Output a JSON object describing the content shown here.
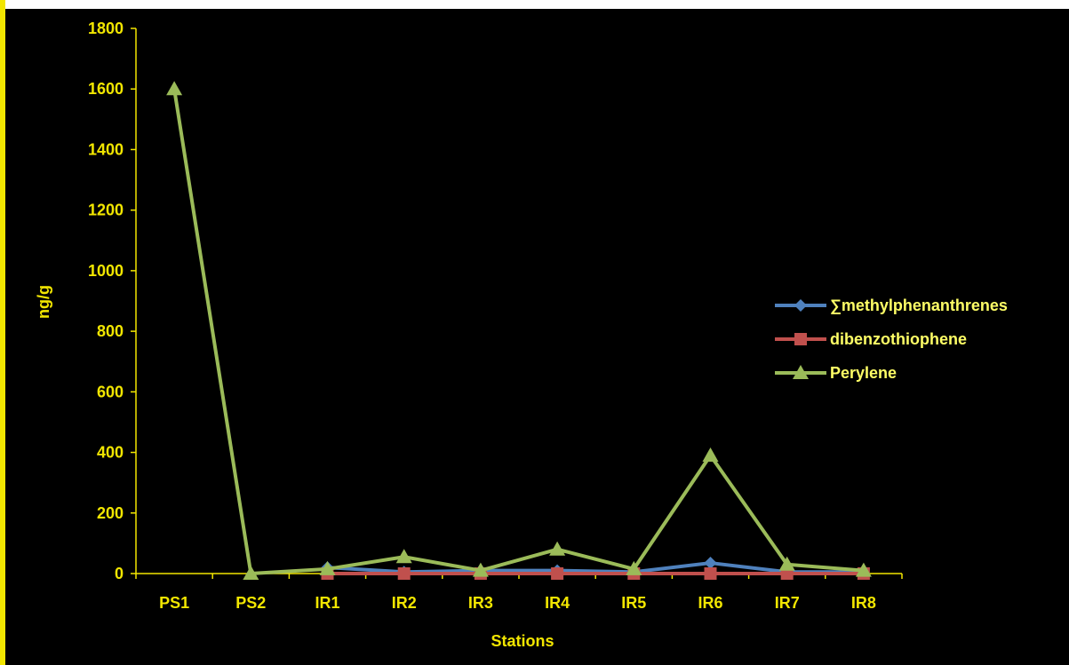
{
  "chart_data": {
    "type": "line",
    "xlabel": "Stations",
    "ylabel": "ng/g",
    "ylim": [
      0,
      1800
    ],
    "yticks": [
      0,
      200,
      400,
      600,
      800,
      1000,
      1200,
      1400,
      1600,
      1800
    ],
    "categories": [
      "PS1",
      "PS2",
      "IR1",
      "IR2",
      "IR3",
      "IR4",
      "IR5",
      "IR6",
      "IR7",
      "IR8"
    ],
    "legend_position": "right",
    "grid": false,
    "series": [
      {
        "name": "∑methylphenanthrenes",
        "marker": "diamond",
        "color": "#4f81bd",
        "values": [
          null,
          null,
          20,
          5,
          10,
          10,
          5,
          35,
          5,
          5
        ]
      },
      {
        "name": "dibenzothiophene",
        "marker": "square",
        "color": "#c0504d",
        "values": [
          null,
          null,
          0,
          0,
          0,
          0,
          0,
          0,
          0,
          0
        ]
      },
      {
        "name": "Perylene",
        "marker": "triangle",
        "color": "#9bbb59",
        "values": [
          1600,
          0,
          15,
          55,
          10,
          80,
          15,
          390,
          30,
          10
        ]
      }
    ],
    "colors": {
      "axis": "#f2e600",
      "text": "#f2e600",
      "legend_text": "#ffff66",
      "background": "#000000"
    }
  }
}
